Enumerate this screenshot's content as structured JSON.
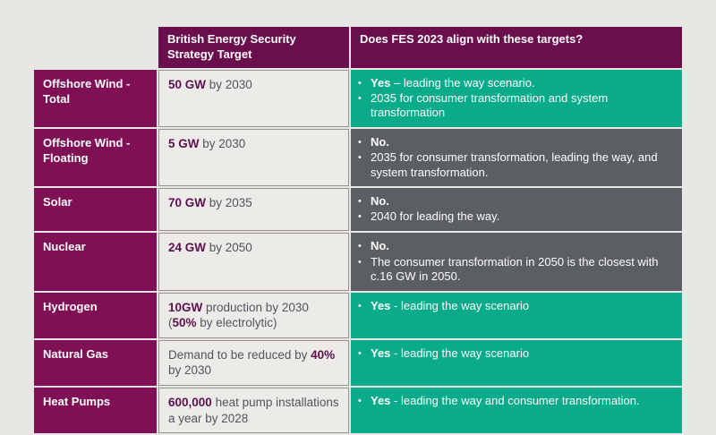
{
  "colors": {
    "page-bg": "#e8e7e4",
    "header-purple": "#6b0e4e",
    "label-purple": "#7f1056",
    "green": "#0aab8b",
    "gray": "#5b5e62",
    "cell-bg": "#edebe8",
    "cell-border": "#95928f",
    "target-bold": "#5c104e",
    "target-text": "#55525e",
    "white-text": "#fdfdfb"
  },
  "header": {
    "col2_label": "British Energy Security Strategy Target",
    "col3_label": "Does FES 2023 align with these targets?"
  },
  "table": {
    "rows": [
      {
        "label": "Offshore Wind - Total",
        "target": [
          {
            "text": "50 GW",
            "bold": true
          },
          {
            "text": " by 2030",
            "bold": false
          }
        ],
        "align": "yes",
        "bullets": [
          {
            "bold": "Yes",
            "text": " – leading the way scenario."
          },
          {
            "bold": "",
            "text": "2035 for consumer transformation and system transformation"
          }
        ]
      },
      {
        "label": "Offshore Wind - Floating",
        "target": [
          {
            "text": "5 GW",
            "bold": true
          },
          {
            "text": " by 2030",
            "bold": false
          }
        ],
        "align": "no",
        "bullets": [
          {
            "bold": "No.",
            "text": ""
          },
          {
            "bold": "",
            "text": "2035 for consumer transformation, leading the way, and system transformation."
          }
        ]
      },
      {
        "label": "Solar",
        "target": [
          {
            "text": "70 GW",
            "bold": true
          },
          {
            "text": " by 2035",
            "bold": false
          }
        ],
        "align": "no",
        "bullets": [
          {
            "bold": "No.",
            "text": ""
          },
          {
            "bold": "",
            "text": "2040 for leading the way."
          }
        ]
      },
      {
        "label": "Nuclear",
        "target": [
          {
            "text": "24 GW",
            "bold": true
          },
          {
            "text": " by 2050",
            "bold": false
          }
        ],
        "align": "no",
        "bullets": [
          {
            "bold": "No.",
            "text": ""
          },
          {
            "bold": "",
            "text": "The consumer transformation in 2050 is the closest with c.16 GW in 2050."
          }
        ]
      },
      {
        "label": "Hydrogen",
        "target": [
          {
            "text": "10GW",
            "bold": true
          },
          {
            "text": " production by 2030 (",
            "bold": false
          },
          {
            "text": "50%",
            "bold": true
          },
          {
            "text": " by electrolytic)",
            "bold": false
          }
        ],
        "align": "yes",
        "bullets": [
          {
            "bold": "Yes",
            "text": " - leading the way scenario"
          }
        ]
      },
      {
        "label": "Natural Gas",
        "target": [
          {
            "text": "Demand to be reduced by ",
            "bold": false
          },
          {
            "text": "40%",
            "bold": true
          },
          {
            "text": " by 2030",
            "bold": false
          }
        ],
        "align": "yes",
        "bullets": [
          {
            "bold": "Yes",
            "text": " - leading the way scenario"
          }
        ]
      },
      {
        "label": "Heat Pumps",
        "target": [
          {
            "text": "600,000",
            "bold": true
          },
          {
            "text": " heat pump installations a year by 2028",
            "bold": false
          }
        ],
        "align": "yes",
        "bullets": [
          {
            "bold": "Yes",
            "text": " - leading the way and consumer transformation."
          }
        ]
      }
    ]
  },
  "chart_data": {
    "type": "table",
    "title": "British Energy Security Strategy Targets vs FES 2023 alignment",
    "columns": [
      "",
      "British Energy Security Strategy Target",
      "Does FES 2023 align with these targets?"
    ],
    "rows": [
      [
        "Offshore Wind - Total",
        "50 GW by 2030",
        "Yes – leading the way scenario. 2035 for consumer transformation and system transformation"
      ],
      [
        "Offshore Wind - Floating",
        "5 GW by 2030",
        "No. 2035 for consumer transformation, leading the way, and system transformation."
      ],
      [
        "Solar",
        "70 GW by 2035",
        "No. 2040 for leading the way."
      ],
      [
        "Nuclear",
        "24 GW by 2050",
        "No. The consumer transformation in 2050 is the closest with c.16 GW in 2050."
      ],
      [
        "Hydrogen",
        "10GW production by 2030 (50% by electrolytic)",
        "Yes - leading the way scenario"
      ],
      [
        "Natural Gas",
        "Demand to be reduced by 40% by 2030",
        "Yes - leading the way scenario"
      ],
      [
        "Heat Pumps",
        "600,000 heat pump installations a year by 2028",
        "Yes - leading the way and consumer transformation."
      ]
    ]
  }
}
